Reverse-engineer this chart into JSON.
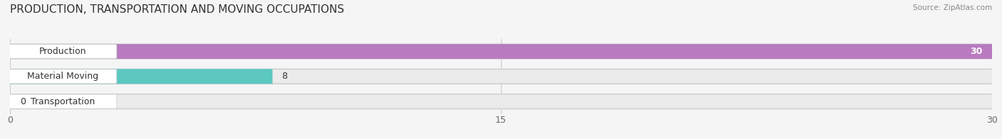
{
  "title": "PRODUCTION, TRANSPORTATION AND MOVING OCCUPATIONS",
  "source": "Source: ZipAtlas.com",
  "categories": [
    "Production",
    "Material Moving",
    "Transportation"
  ],
  "values": [
    30,
    8,
    0
  ],
  "bar_colors": [
    "#b87bbf",
    "#5cc8c0",
    "#a0a8e0"
  ],
  "background_color": "#f5f5f5",
  "xlim": [
    0,
    30
  ],
  "xticks": [
    0,
    15,
    30
  ],
  "title_fontsize": 11,
  "tick_fontsize": 9,
  "bar_label_fontsize": 9
}
